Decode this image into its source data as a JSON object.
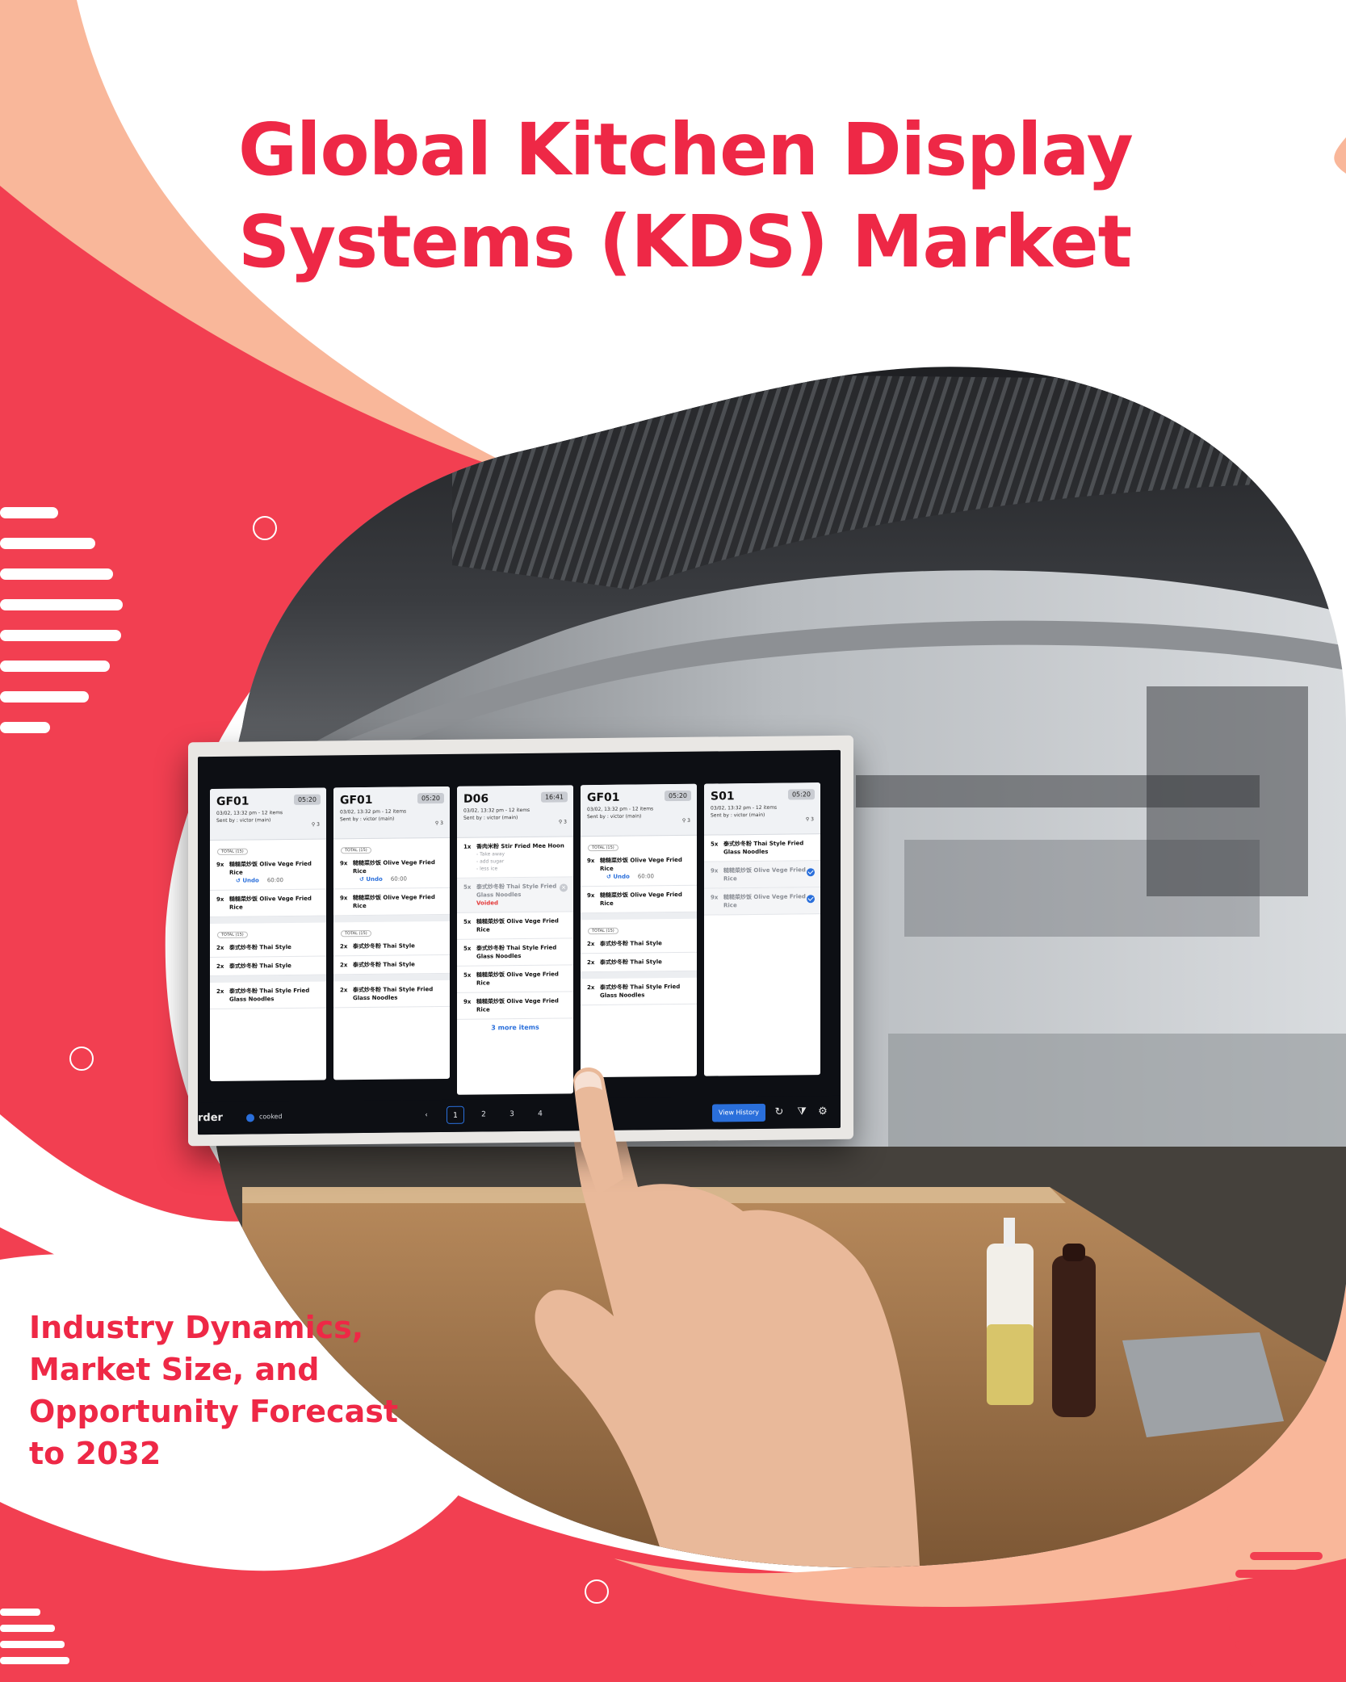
{
  "title": {
    "line1": "Global Kitchen Display",
    "line2": "Systems (KDS) Market"
  },
  "subtitle": {
    "line1": "Industry Dynamics,",
    "line2": "Market Size, and",
    "line3": "Opportunity Forecast",
    "line4": "to 2032"
  },
  "colors": {
    "accent_red": "#ee2846",
    "shape_red": "#f23f51",
    "shape_peach": "#f9b79a",
    "kds_blue": "#2a6fdb"
  },
  "kds": {
    "orders": [
      {
        "id": "GF01",
        "time": "05:20",
        "meta1": "03/02, 13:32 pm - 12 items",
        "meta2": "Sent by : victor (main)",
        "guests": "3",
        "total1": "TOTAL (15)",
        "i1_qty": "9x",
        "i1_name": "糙糙菜炒饭 Olive Vege Fried Rice",
        "undo": "Undo",
        "undo_time": "60:00",
        "i2_qty": "9x",
        "i2_name": "糙糙菜炒饭 Olive Vege Fried Rice",
        "total2": "TOTAL (15)",
        "i3_qty": "2x",
        "i3_name": "泰式炒冬粉 Thai Style",
        "i4_qty": "2x",
        "i4_name": "泰式炒冬粉 Thai Style",
        "i5_qty": "2x",
        "i5_name": "泰式炒冬粉 Thai Style Fried Glass Noodles"
      },
      {
        "id": "GF01",
        "time": "05:20",
        "meta1": "03/02, 13:32 pm - 12 items",
        "meta2": "Sent by : victor (main)",
        "guests": "3",
        "total1": "TOTAL (15)",
        "i1_qty": "9x",
        "i1_name": "糙糙菜炒饭 Olive Vege Fried Rice",
        "undo": "Undo",
        "undo_time": "60:00",
        "i2_qty": "9x",
        "i2_name": "糙糙菜炒饭 Olive Vege Fried Rice",
        "total2": "TOTAL (15)",
        "i3_qty": "2x",
        "i3_name": "泰式炒冬粉 Thai Style",
        "i4_qty": "2x",
        "i4_name": "泰式炒冬粉 Thai Style",
        "i5_qty": "2x",
        "i5_name": "泰式炒冬粉 Thai Style Fried Glass Noodles"
      },
      {
        "id": "D06",
        "time": "16:41",
        "meta1": "03/02, 13:32 pm - 12 items",
        "meta2": "Sent by : victor (main)",
        "guests": "3",
        "i1_qty": "1x",
        "i1_name": "香肉米粉 Stir Fried Mee Hoon",
        "mod1": "- Take away",
        "mod2": "- add sugar",
        "mod3": "- less ice",
        "i2_qty": "5x",
        "i2_name": "泰式炒冬粉 Thai Style Fried Glass Noodles",
        "voided": "Voided",
        "i3_qty": "5x",
        "i3_name": "糙糙菜炒饭 Olive Vege Fried Rice",
        "i4_qty": "5x",
        "i4_name": "泰式炒冬粉 Thai Style Fried Glass Noodles",
        "i5_qty": "5x",
        "i5_name": "糙糙菜炒饭 Olive Vege Fried Rice",
        "i6_qty": "9x",
        "i6_name": "糙糙菜炒饭 Olive Vege Fried Rice",
        "more": "3 more items"
      },
      {
        "id": "GF01",
        "time": "05:20",
        "meta1": "03/02, 13:32 pm - 12 items",
        "meta2": "Sent by : victor (main)",
        "guests": "3",
        "total1": "TOTAL (15)",
        "i1_qty": "9x",
        "i1_name": "糙糙菜炒饭 Olive Vege Fried Rice",
        "undo": "Undo",
        "undo_time": "60:00",
        "i2_qty": "9x",
        "i2_name": "糙糙菜炒饭 Olive Vege Fried Rice",
        "total2": "TOTAL (15)",
        "i3_qty": "2x",
        "i3_name": "泰式炒冬粉 Thai Style",
        "i4_qty": "2x",
        "i4_name": "泰式炒冬粉 Thai Style",
        "i5_qty": "2x",
        "i5_name": "泰式炒冬粉 Thai Style Fried Glass Noodles"
      },
      {
        "id": "S01",
        "time": "05:20",
        "meta1": "03/02, 13:32 pm - 12 items",
        "meta2": "Sent by : victor (main)",
        "guests": "3",
        "i1_qty": "5x",
        "i1_name": "泰式炒冬粉 Thai Style Fried Glass Noodles",
        "i2_qty": "9x",
        "i2_name": "糙糙菜炒饭 Olive Vege Fried Rice",
        "i3_qty": "9x",
        "i3_name": "糙糙菜炒饭 Olive Vege Fried Rice"
      }
    ],
    "bottom": {
      "order_label": "rder",
      "cooked_label": "cooked",
      "prev": "‹",
      "pages": [
        "1",
        "2",
        "3",
        "4"
      ],
      "view_history": "View History",
      "refresh_icon": "↻",
      "filter_icon": "⧩",
      "settings_icon": "⚙"
    }
  }
}
